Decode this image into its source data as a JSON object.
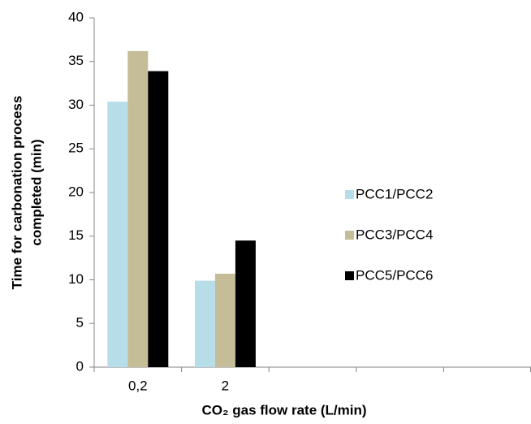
{
  "chart_data": {
    "type": "bar",
    "xlabel": "CO₂ gas flow rate (L/min)",
    "ylabel": [
      "Time for carbonation process",
      "completed (min)"
    ],
    "categories": [
      "0,2",
      "2",
      null,
      null,
      null
    ],
    "series": [
      {
        "name": "PCC1/PCC2",
        "color": "#b7dde8",
        "values": [
          30.4,
          9.9,
          null,
          null,
          null
        ]
      },
      {
        "name": "PCC3/PCC4",
        "color": "#c4bd97",
        "values": [
          36.2,
          10.7,
          null,
          null,
          null
        ]
      },
      {
        "name": "PCC5/PCC6",
        "color": "#000000",
        "values": [
          33.9,
          14.5,
          null,
          null,
          null
        ]
      }
    ],
    "ylim": [
      0,
      40
    ],
    "yticks": [
      0,
      5,
      10,
      15,
      20,
      25,
      30,
      35,
      40
    ],
    "grid": false,
    "legend": "right"
  }
}
